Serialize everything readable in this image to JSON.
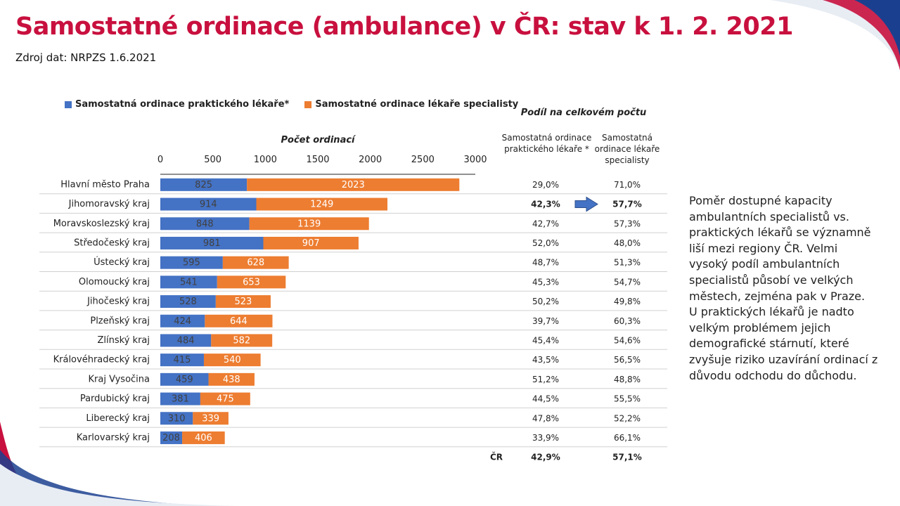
{
  "title": "Samostatné ordinace (ambulance) v ČR: stav k 1. 2. 2021",
  "subtitle": "Zdroj dat: NRPZS 1.6.2021",
  "colors": {
    "title": "#c8103e",
    "practitioner": "#4472c4",
    "specialist": "#ed7d31",
    "arrow": "#4472c4"
  },
  "legend": [
    {
      "label": "Samostatná ordinace praktického lékaře*",
      "color": "#4472c4"
    },
    {
      "label": "Samostatné ordinace lékaře specialisty",
      "color": "#ed7d31"
    }
  ],
  "share_table": {
    "title": "Podíl na celkovém počtu",
    "col1_header": "Samostatná ordinace praktického lékaře *",
    "col2_header": "Samostatná ordinace lékaře specialisty",
    "total_label": "ČR",
    "total_col1": "42,9%",
    "total_col2": "57,1%",
    "highlight_row": 1
  },
  "chart_data": {
    "type": "bar",
    "orientation": "horizontal",
    "stacked": true,
    "xlabel": "Počet ordinací",
    "xlim": [
      0,
      3000
    ],
    "xticks": [
      0,
      500,
      1000,
      1500,
      2000,
      2500,
      3000
    ],
    "categories": [
      "Hlavní město Praha",
      "Jihomoravský kraj",
      "Moravskoslezský kraj",
      "Středočeský kraj",
      "Ústecký kraj",
      "Olomoucký kraj",
      "Jihočeský kraj",
      "Plzeňský kraj",
      "Zlínský kraj",
      "Královéhradecký kraj",
      "Kraj Vysočina",
      "Pardubický kraj",
      "Liberecký kraj",
      "Karlovarský kraj"
    ],
    "series": [
      {
        "name": "Samostatná ordinace praktického lékaře*",
        "values": [
          825,
          914,
          848,
          981,
          595,
          541,
          528,
          424,
          484,
          415,
          459,
          381,
          310,
          208
        ]
      },
      {
        "name": "Samostatné ordinace lékaře specialisty",
        "values": [
          2023,
          1249,
          1139,
          907,
          628,
          653,
          523,
          644,
          582,
          540,
          438,
          475,
          339,
          406
        ]
      }
    ],
    "share_practitioner": [
      "29,0%",
      "42,3%",
      "42,7%",
      "52,0%",
      "48,7%",
      "45,3%",
      "50,2%",
      "39,7%",
      "45,4%",
      "43,5%",
      "51,2%",
      "44,5%",
      "47,8%",
      "33,9%"
    ],
    "share_specialist": [
      "71,0%",
      "57,7%",
      "57,3%",
      "48,0%",
      "51,3%",
      "54,7%",
      "49,8%",
      "60,3%",
      "54,6%",
      "56,5%",
      "48,8%",
      "55,5%",
      "52,2%",
      "66,1%"
    ],
    "grid": false,
    "legend_position": "top"
  },
  "note": {
    "paragraph1": "Poměr dostupné kapacity ambulantních specialistů vs. praktických lékařů se významně liší mezi regiony ČR. Velmi vysoký podíl ambulantních specialistů působí ve velkých městech, zejména pak v Praze.",
    "paragraph2": "U praktických lékařů je nadto velkým problémem jejich demografické stárnutí, které zvyšuje riziko uzavírání ordinací z důvodu odchodu do důchodu."
  }
}
